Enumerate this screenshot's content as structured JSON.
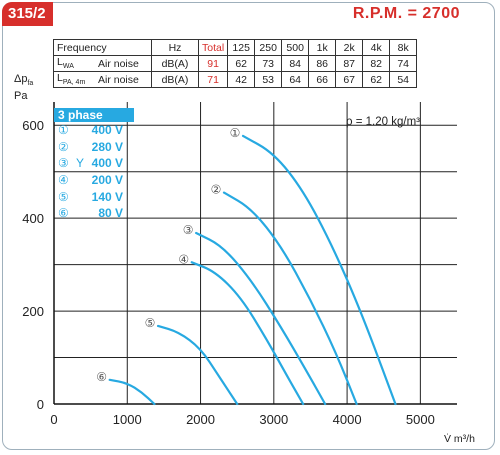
{
  "header": {
    "model": "315/2",
    "rpm": "R.P.M. = 2700"
  },
  "noise_table": {
    "freq_label": "Frequency",
    "unit_header": "Hz",
    "total_header": "Total",
    "bands": [
      "125",
      "250",
      "500",
      "1k",
      "2k",
      "4k",
      "8k"
    ],
    "rows": [
      {
        "symbol": "L",
        "sub": "WA",
        "label": "Air noise",
        "unit": "dB(A)",
        "total": "91",
        "values": [
          "62",
          "73",
          "84",
          "86",
          "87",
          "82",
          "74"
        ]
      },
      {
        "symbol": "L",
        "sub": "PA, 4m",
        "label": "Air noise",
        "unit": "dB(A)",
        "total": "71",
        "values": [
          "42",
          "53",
          "64",
          "66",
          "67",
          "62",
          "54"
        ]
      }
    ]
  },
  "phase_legend": {
    "title": "3 phase",
    "items": [
      {
        "marker": "①",
        "extra": "",
        "voltage": "400 V"
      },
      {
        "marker": "②",
        "extra": "",
        "voltage": "280 V"
      },
      {
        "marker": "③",
        "extra": "Y",
        "voltage": "400 V"
      },
      {
        "marker": "④",
        "extra": "",
        "voltage": "200 V"
      },
      {
        "marker": "⑤",
        "extra": "",
        "voltage": "140 V"
      },
      {
        "marker": "⑥",
        "extra": "",
        "voltage": "80 V"
      }
    ]
  },
  "density_note": "ρ = 1.20 kg/m³",
  "chart_data": {
    "type": "line",
    "ylabel_main": "Δp",
    "ylabel_sub": "fa",
    "ylabel_unit": "Pa",
    "xlabel": "V̇ m³/h",
    "xlim": [
      0,
      5500
    ],
    "ylim": [
      0,
      650
    ],
    "x_ticks": [
      "0",
      "1000",
      "2000",
      "3000",
      "4000",
      "5000"
    ],
    "y_ticks": [
      "0",
      "200",
      "400",
      "600"
    ],
    "grid": true,
    "colors": {
      "curve": "#27a9e1",
      "grid": "#222222",
      "accent": "#d72f2b"
    },
    "series": [
      {
        "name": "①",
        "points": [
          [
            2580,
            577
          ],
          [
            3000,
            540
          ],
          [
            3400,
            460
          ],
          [
            3800,
            340
          ],
          [
            4200,
            195
          ],
          [
            4660,
            0
          ]
        ]
      },
      {
        "name": "②",
        "points": [
          [
            2320,
            455
          ],
          [
            2700,
            420
          ],
          [
            3100,
            340
          ],
          [
            3500,
            225
          ],
          [
            3850,
            110
          ],
          [
            4130,
            0
          ]
        ]
      },
      {
        "name": "③",
        "points": [
          [
            1940,
            368
          ],
          [
            2300,
            340
          ],
          [
            2700,
            265
          ],
          [
            3100,
            165
          ],
          [
            3450,
            70
          ],
          [
            3700,
            0
          ]
        ]
      },
      {
        "name": "④",
        "points": [
          [
            1880,
            305
          ],
          [
            2200,
            285
          ],
          [
            2550,
            230
          ],
          [
            2900,
            140
          ],
          [
            3200,
            55
          ],
          [
            3400,
            0
          ]
        ]
      },
      {
        "name": "⑤",
        "points": [
          [
            1420,
            168
          ],
          [
            1700,
            155
          ],
          [
            2000,
            120
          ],
          [
            2250,
            60
          ],
          [
            2500,
            0
          ]
        ]
      },
      {
        "name": "⑥",
        "points": [
          [
            760,
            52
          ],
          [
            1000,
            45
          ],
          [
            1200,
            25
          ],
          [
            1370,
            0
          ]
        ]
      }
    ]
  }
}
